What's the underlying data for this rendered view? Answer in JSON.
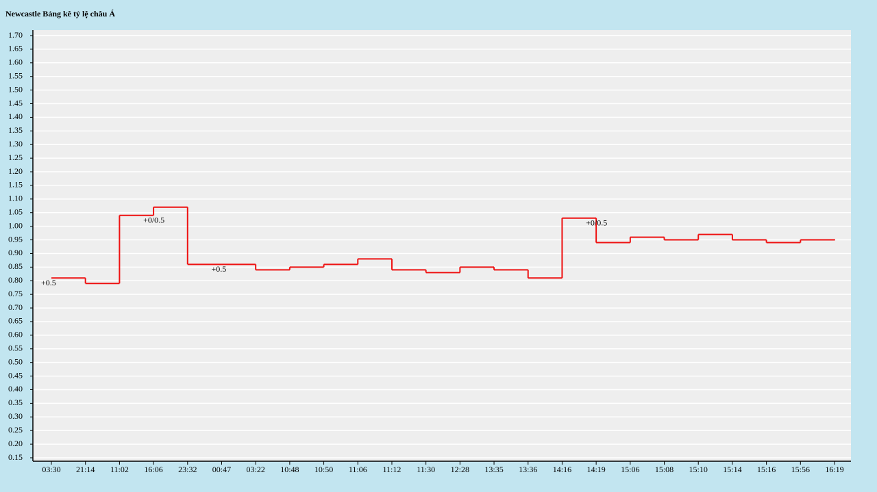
{
  "chart_data": {
    "type": "step",
    "title": "Newcastle Bảng kê tỷ lệ châu Á",
    "categories": [
      "03:30",
      "21:14",
      "11:02",
      "16:06",
      "23:32",
      "00:47",
      "03:22",
      "10:48",
      "10:50",
      "11:06",
      "11:12",
      "11:30",
      "12:28",
      "13:35",
      "13:36",
      "14:16",
      "14:19",
      "15:06",
      "15:08",
      "15:10",
      "15:14",
      "15:16",
      "15:56",
      "16:19"
    ],
    "values": [
      0.81,
      0.79,
      1.04,
      1.07,
      0.86,
      0.86,
      0.84,
      0.85,
      0.86,
      0.88,
      0.84,
      0.83,
      0.85,
      0.84,
      0.81,
      1.03,
      0.94,
      0.96,
      0.95,
      0.97,
      0.95,
      0.94,
      0.95,
      0.95
    ],
    "color": "#ee1111",
    "ylim": [
      0.15,
      1.7
    ],
    "yticks": [
      0.15,
      {
        "value": 0.2,
        "label": "0.20"
      },
      0.25,
      {
        "value": 0.3,
        "label": "0.30"
      },
      0.35,
      {
        "value": 0.4,
        "label": "0.40"
      },
      0.45,
      {
        "value": 0.5,
        "label": "0.50"
      },
      0.55,
      {
        "value": 0.6,
        "label": "0.60"
      },
      0.65,
      {
        "value": 0.7,
        "label": "0.70"
      },
      0.75,
      {
        "value": 0.8,
        "label": "0.80"
      },
      0.85,
      {
        "value": 0.9,
        "label": "0.90"
      },
      0.95,
      {
        "value": 1,
        "label": "1.00"
      },
      1.05,
      {
        "value": 1.1,
        "label": "1.10"
      },
      1.15,
      {
        "value": 1.2,
        "label": "1.20"
      },
      1.25,
      {
        "value": 1.3,
        "label": "1.30"
      },
      1.35,
      {
        "value": 1.4,
        "label": "1.40"
      },
      1.45,
      {
        "value": 1.5,
        "label": "1.50"
      },
      1.55,
      {
        "value": 1.6,
        "label": "1.60"
      },
      1.65,
      {
        "value": 1.7,
        "label": "1.70"
      }
    ],
    "grid": true,
    "annotations": [
      {
        "x": "03:30",
        "text": "+0.5"
      },
      {
        "x": "16:06",
        "text": "+0/0.5"
      },
      {
        "x": "00:47",
        "text": "+0.5"
      },
      {
        "x": "14:19",
        "text": "+0/0.5"
      }
    ]
  }
}
